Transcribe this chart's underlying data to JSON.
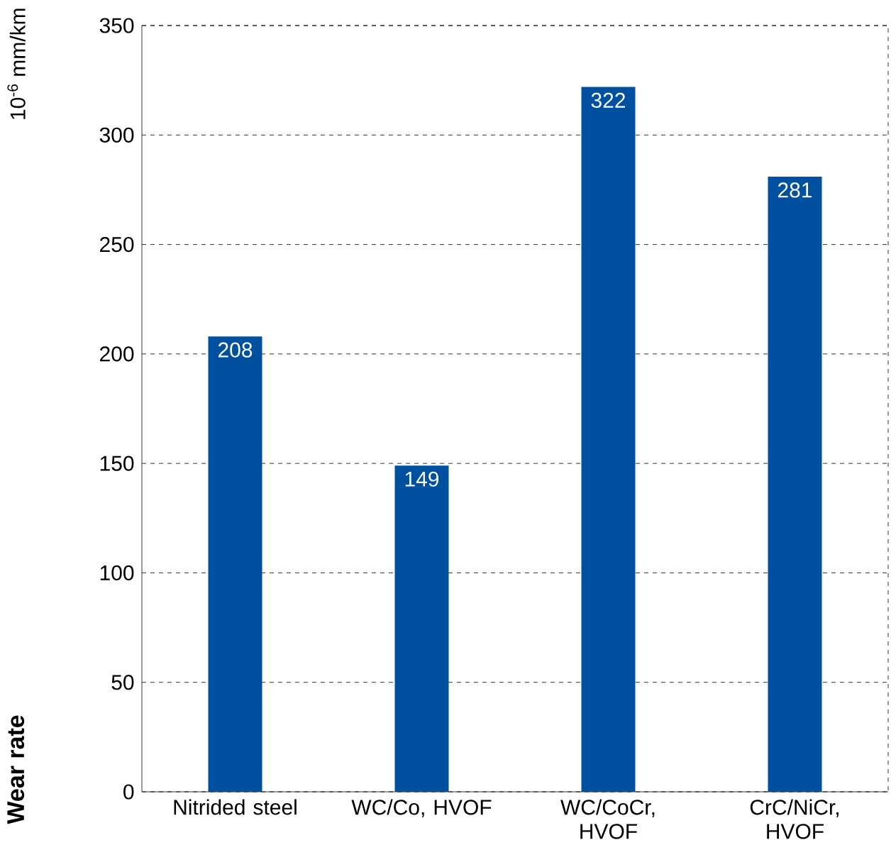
{
  "chart_data": {
    "type": "bar",
    "ylabel": "Wear rate",
    "annotations": [
      "10$^{-6}$ mm/km"
    ],
    "categories": [
      "Nitrided steel",
      "WC/Co, HVOF",
      "WC/CoCr, HVOF",
      "CrC/NiCr, HVOF"
    ],
    "values": [
      208,
      149,
      322,
      281
    ],
    "color": "#0050a0",
    "ylim": [
      0,
      350
    ],
    "yticks": [
      0,
      50,
      100,
      150,
      200,
      250,
      300,
      350
    ],
    "grid": "y",
    "data_labels": true
  }
}
